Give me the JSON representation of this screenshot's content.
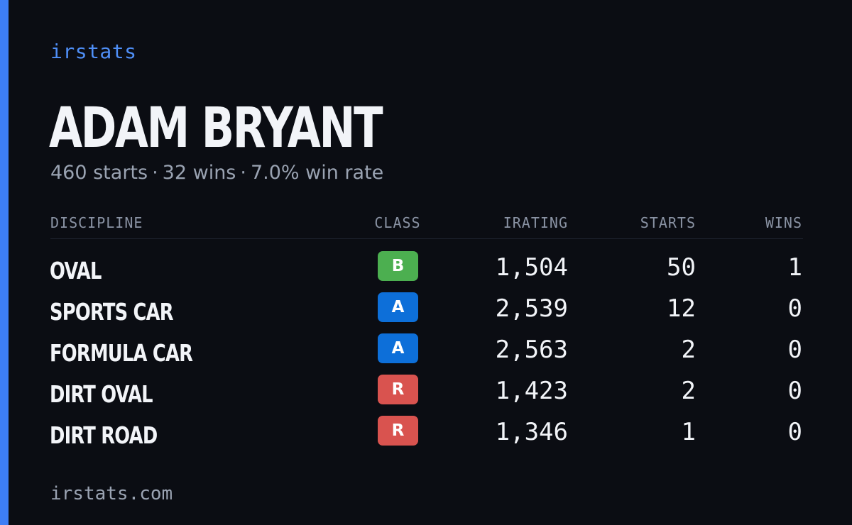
{
  "brand": "irstats",
  "driver": {
    "name": "ADAM BRYANT",
    "starts_text": "460 starts",
    "wins_text": "32 wins",
    "win_rate_text": "7.0% win rate",
    "separator": "·"
  },
  "table": {
    "headers": {
      "discipline": "DISCIPLINE",
      "class": "CLASS",
      "irating": "IRATING",
      "starts": "STARTS",
      "wins": "WINS"
    },
    "rows": [
      {
        "discipline": "OVAL",
        "class": "B",
        "irating": "1,504",
        "starts": "50",
        "wins": "1"
      },
      {
        "discipline": "SPORTS CAR",
        "class": "A",
        "irating": "2,539",
        "starts": "12",
        "wins": "0"
      },
      {
        "discipline": "FORMULA CAR",
        "class": "A",
        "irating": "2,563",
        "starts": "2",
        "wins": "0"
      },
      {
        "discipline": "DIRT OVAL",
        "class": "R",
        "irating": "1,423",
        "starts": "2",
        "wins": "0"
      },
      {
        "discipline": "DIRT ROAD",
        "class": "R",
        "irating": "1,346",
        "starts": "1",
        "wins": "0"
      }
    ]
  },
  "class_colors": {
    "A": "#0d6fd9",
    "B": "#4caf50",
    "R": "#d9534f"
  },
  "accent_color": "#3d7ef5",
  "footer": "irstats.com"
}
